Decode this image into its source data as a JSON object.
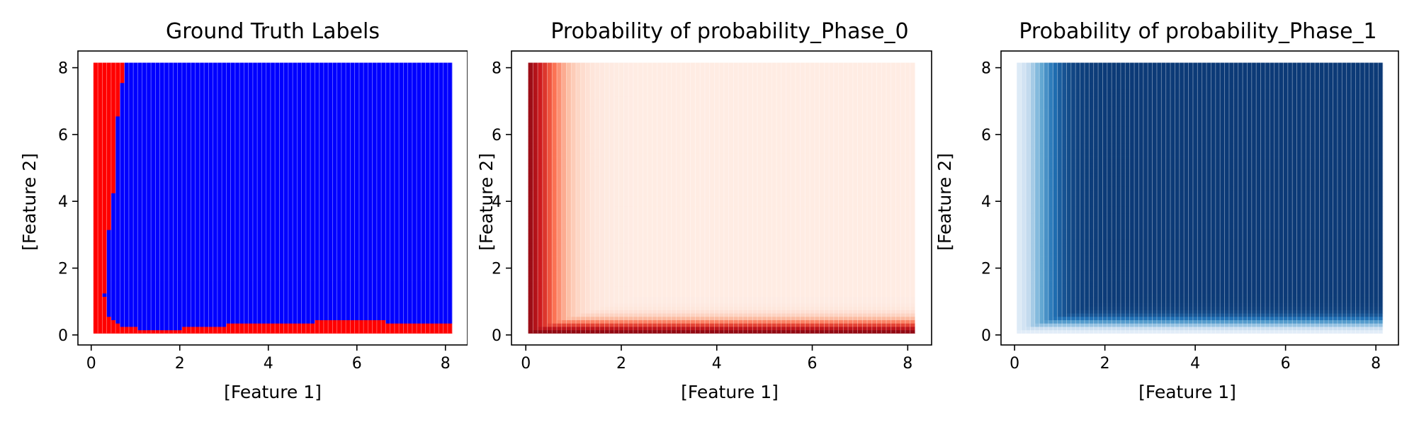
{
  "figure": {
    "background": "#ffffff"
  },
  "chart_data": [
    {
      "type": "scatter",
      "title": "Ground Truth Labels",
      "xlabel": "[Feature 1]",
      "ylabel": "[Feature 2]",
      "xlim": [
        -0.3,
        8.5
      ],
      "ylim": [
        -0.3,
        8.5
      ],
      "xticks": [
        0,
        2,
        4,
        6,
        8
      ],
      "yticks": [
        0,
        2,
        4,
        6,
        8
      ],
      "grid": false,
      "legend": "none",
      "color_mode": "categorical",
      "colors": {
        "class_0": "#ff0000",
        "class_1": "#0000ff"
      },
      "grid_points": {
        "x_min": 0.1,
        "x_max": 8.1,
        "y_min": 0.1,
        "y_max": 8.1,
        "n_x": 81,
        "n_y": 81
      },
      "class_0_region": {
        "left_boundary": [
          {
            "y": 8.1,
            "x": 0.75
          },
          {
            "y": 6.5,
            "x": 0.6
          },
          {
            "y": 4.7,
            "x": 0.55
          },
          {
            "y": 3.8,
            "x": 0.45
          },
          {
            "y": 2.5,
            "x": 0.35
          },
          {
            "y": 1.2,
            "x": 0.3
          },
          {
            "y": 0.6,
            "x": 0.4
          },
          {
            "y": 0.3,
            "x": 0.7
          }
        ],
        "bottom_boundary": [
          {
            "x": 0.8,
            "y": 0.25
          },
          {
            "x": 1.3,
            "y": 0.15
          },
          {
            "x": 2.0,
            "y": 0.2
          },
          {
            "x": 3.0,
            "y": 0.3
          },
          {
            "x": 4.0,
            "y": 0.4
          },
          {
            "x": 5.0,
            "y": 0.4
          },
          {
            "x": 5.8,
            "y": 0.5
          },
          {
            "x": 6.7,
            "y": 0.4
          },
          {
            "x": 8.1,
            "y": 0.4
          }
        ]
      }
    },
    {
      "type": "scatter",
      "title": "Probability of probability_Phase_0",
      "xlabel": "[Feature 1]",
      "ylabel": "[Feature 2]",
      "xlim": [
        -0.3,
        8.5
      ],
      "ylim": [
        -0.3,
        8.5
      ],
      "xticks": [
        0,
        2,
        4,
        6,
        8
      ],
      "yticks": [
        0,
        2,
        4,
        6,
        8
      ],
      "grid": false,
      "legend": "none",
      "color_mode": "probability",
      "colormap": "Reds",
      "colormap_stops": [
        "#fff5f0",
        "#fcbba1",
        "#fb6a4a",
        "#cb181d",
        "#67000d"
      ],
      "grid_points": {
        "x_min": 0.1,
        "x_max": 8.1,
        "y_min": 0.1,
        "y_max": 8.1,
        "n_x": 81,
        "n_y": 81
      },
      "surface": {
        "left_edge_x": 0.55,
        "left_edge_width": 0.25,
        "bottom_edge_y": 0.35,
        "bottom_edge_width": 0.12,
        "background_level": 0.04
      }
    },
    {
      "type": "scatter",
      "title": "Probability of probability_Phase_1",
      "xlabel": "[Feature 1]",
      "ylabel": "[Feature 2]",
      "xlim": [
        -0.3,
        8.5
      ],
      "ylim": [
        -0.3,
        8.5
      ],
      "xticks": [
        0,
        2,
        4,
        6,
        8
      ],
      "yticks": [
        0,
        2,
        4,
        6,
        8
      ],
      "grid": false,
      "legend": "none",
      "color_mode": "probability",
      "colormap": "Blues",
      "colormap_stops": [
        "#f7fbff",
        "#c6dbef",
        "#6baed6",
        "#2171b5",
        "#08306b"
      ],
      "grid_points": {
        "x_min": 0.1,
        "x_max": 8.1,
        "y_min": 0.1,
        "y_max": 8.1,
        "n_x": 81,
        "n_y": 81
      },
      "surface": {
        "left_edge_x": 0.55,
        "left_edge_width": 0.25,
        "bottom_edge_y": 0.35,
        "bottom_edge_width": 0.12,
        "background_level": 0.04
      }
    }
  ]
}
